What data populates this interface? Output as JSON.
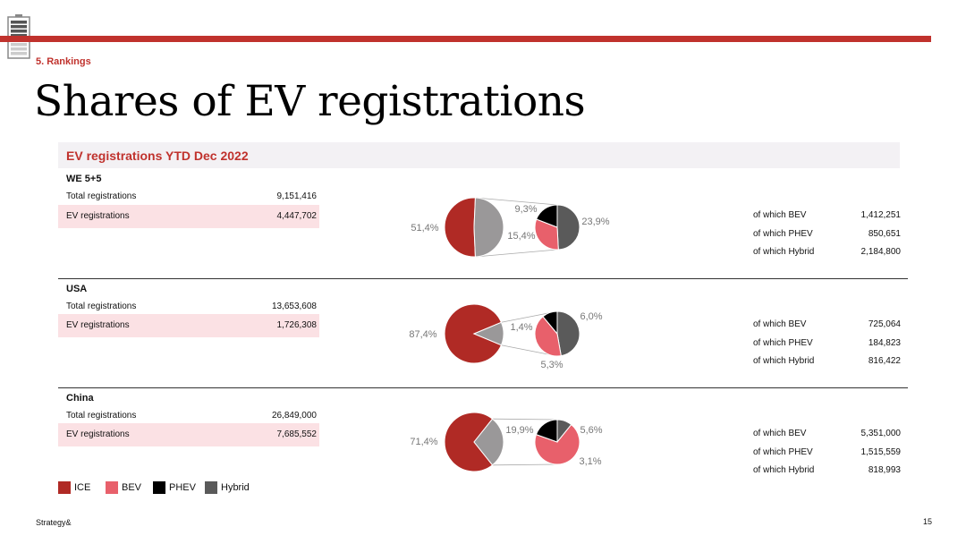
{
  "header": {
    "section": "5. Rankings",
    "title": "Shares of EV registrations"
  },
  "table_header": "EV registrations YTD Dec 2022",
  "colors": {
    "ICE": "#b02a25",
    "BEV": "#e8606b",
    "PHEV": "#000000",
    "Hybrid": "#5a5a5a",
    "EV_slice": "#9a9899"
  },
  "regions": [
    {
      "name": "WE 5+5",
      "total_label": "Total registrations",
      "total_value": "9,151,416",
      "ev_label": "EV registrations",
      "ev_value": "4,447,702",
      "breakdown": [
        {
          "label": "of which BEV",
          "value": "1,412,251"
        },
        {
          "label": "of which PHEV",
          "value": "850,651"
        },
        {
          "label": "of which Hybrid",
          "value": "2,184,800"
        }
      ]
    },
    {
      "name": "USA",
      "total_label": "Total registrations",
      "total_value": "13,653,608",
      "ev_label": "EV registrations",
      "ev_value": "1,726,308",
      "breakdown": [
        {
          "label": "of which BEV",
          "value": "725,064"
        },
        {
          "label": "of which PHEV",
          "value": "184,823"
        },
        {
          "label": "of which Hybrid",
          "value": "816,422"
        }
      ]
    },
    {
      "name": "China",
      "total_label": "Total registrations",
      "total_value": "26,849,000",
      "ev_label": "EV registrations",
      "ev_value": "7,685,552",
      "breakdown": [
        {
          "label": "of which BEV",
          "value": "5,351,000"
        },
        {
          "label": "of which PHEV",
          "value": "1,515,559"
        },
        {
          "label": "of which Hybrid",
          "value": "818,993"
        }
      ]
    }
  ],
  "chart_data": [
    {
      "type": "pie",
      "region": "WE 5+5",
      "main": {
        "categories": [
          "ICE",
          "EV"
        ],
        "values": [
          51.4,
          48.6
        ],
        "labels": [
          "51,4%",
          ""
        ]
      },
      "breakdown": {
        "categories": [
          "BEV",
          "PHEV",
          "Hybrid"
        ],
        "values": [
          15.4,
          9.3,
          23.9
        ],
        "labels": [
          "15,4%",
          "9,3%",
          "23,9%"
        ]
      }
    },
    {
      "type": "pie",
      "region": "USA",
      "main": {
        "categories": [
          "ICE",
          "EV"
        ],
        "values": [
          87.4,
          12.6
        ],
        "labels": [
          "87,4%",
          ""
        ]
      },
      "breakdown": {
        "categories": [
          "BEV",
          "PHEV",
          "Hybrid"
        ],
        "values": [
          5.3,
          1.4,
          6.0
        ],
        "labels": [
          "5,3%",
          "1,4%",
          "6,0%"
        ]
      }
    },
    {
      "type": "pie",
      "region": "China",
      "main": {
        "categories": [
          "ICE",
          "EV"
        ],
        "values": [
          71.4,
          28.6
        ],
        "labels": [
          "71,4%",
          ""
        ]
      },
      "breakdown": {
        "categories": [
          "BEV",
          "PHEV",
          "Hybrid"
        ],
        "values": [
          19.9,
          5.6,
          3.1
        ],
        "labels": [
          "19,9%",
          "5,6%",
          "3,1%"
        ]
      }
    }
  ],
  "legend": [
    {
      "label": "ICE",
      "color": "#b02a25"
    },
    {
      "label": "BEV",
      "color": "#e8606b"
    },
    {
      "label": "PHEV",
      "color": "#000000"
    },
    {
      "label": "Hybrid",
      "color": "#5a5a5a"
    }
  ],
  "footer": {
    "brand": "Strategy&",
    "page": "15"
  }
}
